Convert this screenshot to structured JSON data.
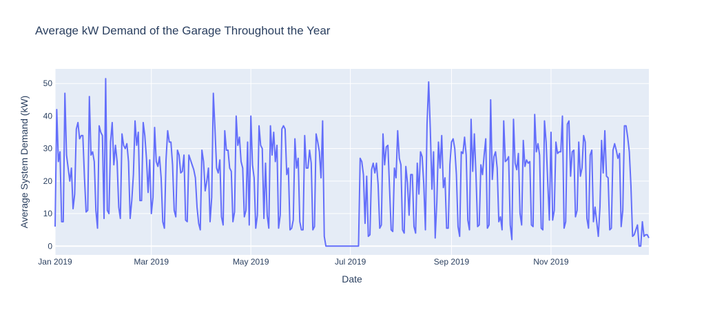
{
  "chart_data": {
    "type": "line",
    "title": "Average kW Demand of the Garage Throughout the Year",
    "xlabel": "Date",
    "ylabel": "Average System Demand (kW)",
    "x_range": [
      "2019-01-01",
      "2019-12-31"
    ],
    "ylim": [
      -2.7,
      54.5
    ],
    "x_ticks": [
      {
        "date": "2019-01-01",
        "label": "Jan 2019"
      },
      {
        "date": "2019-03-01",
        "label": "Mar 2019"
      },
      {
        "date": "2019-05-01",
        "label": "May 2019"
      },
      {
        "date": "2019-07-01",
        "label": "Jul 2019"
      },
      {
        "date": "2019-09-01",
        "label": "Sep 2019"
      },
      {
        "date": "2019-11-01",
        "label": "Nov 2019"
      }
    ],
    "y_ticks": [
      0,
      10,
      20,
      30,
      40,
      50
    ],
    "grid": true,
    "colors": {
      "line": "#636efa",
      "plot_bg": "#e5ecf6",
      "grid": "#ffffff",
      "text": "#2a3f5f"
    },
    "series": [
      {
        "x": [
          "2019-01-01",
          "2019-01-02",
          "2019-01-03",
          "2019-01-04",
          "2019-01-05",
          "2019-01-06",
          "2019-01-07",
          "2019-01-08",
          "2019-01-09",
          "2019-01-10",
          "2019-01-11",
          "2019-01-12",
          "2019-01-13",
          "2019-01-14",
          "2019-01-15",
          "2019-01-16",
          "2019-01-17",
          "2019-01-18",
          "2019-01-19",
          "2019-01-20",
          "2019-01-21",
          "2019-01-22",
          "2019-01-23",
          "2019-01-24",
          "2019-01-25",
          "2019-01-26",
          "2019-01-27",
          "2019-01-28",
          "2019-01-29",
          "2019-01-30",
          "2019-01-31",
          "2019-02-01",
          "2019-02-02",
          "2019-02-03",
          "2019-02-04",
          "2019-02-05",
          "2019-02-06",
          "2019-02-07",
          "2019-02-08",
          "2019-02-09",
          "2019-02-10",
          "2019-02-11",
          "2019-02-12",
          "2019-02-13",
          "2019-02-14",
          "2019-02-15",
          "2019-02-16",
          "2019-02-17",
          "2019-02-18",
          "2019-02-19",
          "2019-02-20",
          "2019-02-21",
          "2019-02-22",
          "2019-02-23",
          "2019-02-24",
          "2019-02-25",
          "2019-02-26",
          "2019-02-27",
          "2019-02-28",
          "2019-03-01",
          "2019-03-02",
          "2019-03-03",
          "2019-03-04",
          "2019-03-05",
          "2019-03-06",
          "2019-03-07",
          "2019-03-08",
          "2019-03-09",
          "2019-03-10",
          "2019-03-11",
          "2019-03-12",
          "2019-03-13",
          "2019-03-14",
          "2019-03-15",
          "2019-03-16",
          "2019-03-17",
          "2019-03-18",
          "2019-03-19",
          "2019-03-20",
          "2019-03-21",
          "2019-03-22",
          "2019-03-23",
          "2019-03-24",
          "2019-03-25",
          "2019-03-26",
          "2019-03-27",
          "2019-03-28",
          "2019-03-29",
          "2019-03-30",
          "2019-03-31",
          "2019-04-01",
          "2019-04-02",
          "2019-04-03",
          "2019-04-04",
          "2019-04-05",
          "2019-04-06",
          "2019-04-07",
          "2019-04-08",
          "2019-04-09",
          "2019-04-10",
          "2019-04-11",
          "2019-04-12",
          "2019-04-13",
          "2019-04-14",
          "2019-04-15",
          "2019-04-16",
          "2019-04-17",
          "2019-04-18",
          "2019-04-19",
          "2019-04-20",
          "2019-04-21",
          "2019-04-22",
          "2019-04-23",
          "2019-04-24",
          "2019-04-25",
          "2019-04-26",
          "2019-04-27",
          "2019-04-28",
          "2019-04-29",
          "2019-04-30",
          "2019-05-01",
          "2019-05-02",
          "2019-05-03",
          "2019-05-04",
          "2019-05-05",
          "2019-05-06",
          "2019-05-07",
          "2019-05-08",
          "2019-05-09",
          "2019-05-10",
          "2019-05-11",
          "2019-05-12",
          "2019-05-13",
          "2019-05-14",
          "2019-05-15",
          "2019-05-16",
          "2019-05-17",
          "2019-05-18",
          "2019-05-19",
          "2019-05-20",
          "2019-05-21",
          "2019-05-22",
          "2019-05-23",
          "2019-05-24",
          "2019-05-25",
          "2019-05-26",
          "2019-05-27",
          "2019-05-28",
          "2019-05-29",
          "2019-05-30",
          "2019-05-31",
          "2019-06-01",
          "2019-06-02",
          "2019-06-03",
          "2019-06-04",
          "2019-06-05",
          "2019-06-06",
          "2019-06-07",
          "2019-06-08",
          "2019-06-09",
          "2019-06-10",
          "2019-06-11",
          "2019-06-12",
          "2019-06-13",
          "2019-06-14",
          "2019-06-15",
          "2019-06-16",
          "2019-06-17",
          "2019-06-18",
          "2019-06-19",
          "2019-06-20",
          "2019-06-21",
          "2019-06-22",
          "2019-06-23",
          "2019-06-24",
          "2019-06-25",
          "2019-06-26",
          "2019-06-27",
          "2019-06-28",
          "2019-06-29",
          "2019-06-30",
          "2019-07-01",
          "2019-07-02",
          "2019-07-03",
          "2019-07-04",
          "2019-07-05",
          "2019-07-06",
          "2019-07-07",
          "2019-07-08",
          "2019-07-09",
          "2019-07-10",
          "2019-07-11",
          "2019-07-12",
          "2019-07-13",
          "2019-07-14",
          "2019-07-15",
          "2019-07-16",
          "2019-07-17",
          "2019-07-18",
          "2019-07-19",
          "2019-07-20",
          "2019-07-21",
          "2019-07-22",
          "2019-07-23",
          "2019-07-24",
          "2019-07-25",
          "2019-07-26",
          "2019-07-27",
          "2019-07-28",
          "2019-07-29",
          "2019-07-30",
          "2019-07-31",
          "2019-08-01",
          "2019-08-02",
          "2019-08-03",
          "2019-08-04",
          "2019-08-05",
          "2019-08-06",
          "2019-08-07",
          "2019-08-08",
          "2019-08-09",
          "2019-08-10",
          "2019-08-11",
          "2019-08-12",
          "2019-08-13",
          "2019-08-14",
          "2019-08-15",
          "2019-08-16",
          "2019-08-17",
          "2019-08-18",
          "2019-08-19",
          "2019-08-20",
          "2019-08-21",
          "2019-08-22",
          "2019-08-23",
          "2019-08-24",
          "2019-08-25",
          "2019-08-26",
          "2019-08-27",
          "2019-08-28",
          "2019-08-29",
          "2019-08-30",
          "2019-08-31",
          "2019-09-01",
          "2019-09-02",
          "2019-09-03",
          "2019-09-04",
          "2019-09-05",
          "2019-09-06",
          "2019-09-07",
          "2019-09-08",
          "2019-09-09",
          "2019-09-10",
          "2019-09-11",
          "2019-09-12",
          "2019-09-13",
          "2019-09-14",
          "2019-09-15",
          "2019-09-16",
          "2019-09-17",
          "2019-09-18",
          "2019-09-19",
          "2019-09-20",
          "2019-09-21",
          "2019-09-22",
          "2019-09-23",
          "2019-09-24",
          "2019-09-25",
          "2019-09-26",
          "2019-09-27",
          "2019-09-28",
          "2019-09-29",
          "2019-09-30",
          "2019-10-01",
          "2019-10-02",
          "2019-10-03",
          "2019-10-04",
          "2019-10-05",
          "2019-10-06",
          "2019-10-07",
          "2019-10-08",
          "2019-10-09",
          "2019-10-10",
          "2019-10-11",
          "2019-10-12",
          "2019-10-13",
          "2019-10-14",
          "2019-10-15",
          "2019-10-16",
          "2019-10-17",
          "2019-10-18",
          "2019-10-19",
          "2019-10-20",
          "2019-10-21",
          "2019-10-22",
          "2019-10-23",
          "2019-10-24",
          "2019-10-25",
          "2019-10-26",
          "2019-10-27",
          "2019-10-28",
          "2019-10-29",
          "2019-10-30",
          "2019-10-31",
          "2019-11-01",
          "2019-11-02",
          "2019-11-03",
          "2019-11-04",
          "2019-11-05",
          "2019-11-06",
          "2019-11-07",
          "2019-11-08",
          "2019-11-09",
          "2019-11-10",
          "2019-11-11",
          "2019-11-12",
          "2019-11-13",
          "2019-11-14",
          "2019-11-15",
          "2019-11-16",
          "2019-11-17",
          "2019-11-18",
          "2019-11-19",
          "2019-11-20",
          "2019-11-21",
          "2019-11-22",
          "2019-11-23",
          "2019-11-24",
          "2019-11-25",
          "2019-11-26",
          "2019-11-27",
          "2019-11-28",
          "2019-11-29",
          "2019-11-30",
          "2019-12-01",
          "2019-12-02",
          "2019-12-03",
          "2019-12-04",
          "2019-12-05",
          "2019-12-06",
          "2019-12-07",
          "2019-12-08",
          "2019-12-09",
          "2019-12-10",
          "2019-12-11",
          "2019-12-12",
          "2019-12-13",
          "2019-12-14",
          "2019-12-15",
          "2019-12-16",
          "2019-12-17",
          "2019-12-18",
          "2019-12-19",
          "2019-12-20",
          "2019-12-21",
          "2019-12-22",
          "2019-12-23",
          "2019-12-24",
          "2019-12-25",
          "2019-12-26",
          "2019-12-27",
          "2019-12-28",
          "2019-12-29",
          "2019-12-30",
          "2019-12-31"
        ],
        "values": [
          6,
          42,
          26,
          29,
          7.5,
          7.5,
          47,
          28,
          24,
          20,
          24,
          11.5,
          16,
          36,
          38,
          33,
          34,
          34,
          21,
          10.5,
          11,
          46,
          28,
          29,
          26,
          11,
          5.5,
          37,
          35,
          34,
          8.5,
          51.5,
          11,
          10,
          32,
          38,
          25,
          31,
          26,
          12,
          8.5,
          34.5,
          31,
          30,
          31.5,
          26,
          8.5,
          14,
          22,
          38.5,
          31,
          35,
          14,
          14,
          38,
          34,
          27,
          16.5,
          26.5,
          10,
          15,
          36.5,
          26,
          24.5,
          27.5,
          21,
          7.5,
          5.5,
          26.5,
          35.5,
          32,
          32,
          25,
          11,
          9,
          29.5,
          28,
          22.5,
          23,
          28,
          8,
          7.5,
          28,
          26.5,
          25,
          23.5,
          21,
          12,
          7,
          5,
          29.5,
          26,
          17,
          20,
          24,
          7.5,
          15,
          47,
          36,
          24,
          22.5,
          26.5,
          9,
          6.5,
          35.5,
          29.5,
          29.5,
          24,
          23,
          7.5,
          10.5,
          40,
          31,
          33.5,
          26,
          24,
          9,
          11,
          32,
          6.5,
          40,
          25,
          21,
          5.5,
          9.5,
          37,
          31,
          30,
          8.5,
          25.5,
          9.5,
          5.5,
          37,
          28,
          35,
          26,
          31,
          5.5,
          9.5,
          36,
          37,
          36,
          22,
          24,
          5,
          5.5,
          8,
          33,
          24,
          27,
          7.5,
          5,
          5,
          34,
          24,
          24,
          29.5,
          25.5,
          5,
          6,
          34.5,
          32,
          29,
          21,
          38.5,
          3,
          0,
          0,
          0,
          0,
          0,
          0,
          0,
          0,
          0,
          0,
          0,
          0,
          0,
          0,
          0,
          0,
          0,
          0,
          0,
          0,
          0,
          27,
          26,
          22,
          7,
          21.5,
          3,
          3.5,
          23.5,
          25.5,
          22.5,
          25.5,
          19,
          5.5,
          6.5,
          34.5,
          25,
          30.5,
          31,
          18,
          5,
          4.5,
          24,
          21,
          35.5,
          27,
          25,
          5,
          4,
          24.5,
          19.5,
          9.5,
          22,
          22,
          6,
          4,
          25.5,
          16,
          29,
          27.5,
          19,
          5,
          37.5,
          50.5,
          36,
          17.5,
          29,
          2.5,
          13.5,
          32,
          24,
          34,
          18,
          21,
          5.5,
          5.5,
          25,
          32,
          33,
          30,
          22,
          6,
          3,
          29,
          28.5,
          33.5,
          28,
          8,
          5,
          39,
          23,
          34.5,
          22,
          6,
          6.5,
          25,
          22,
          28,
          33,
          5.5,
          6.5,
          45,
          20.5,
          27.5,
          29,
          24,
          7.5,
          9,
          5,
          38.5,
          26,
          26.5,
          27.5,
          6.5,
          2,
          39,
          25.5,
          23.5,
          28.5,
          10,
          6.5,
          32.5,
          24.5,
          26.5,
          25.5,
          26,
          6.5,
          6,
          40.5,
          29,
          31.5,
          28,
          5.5,
          5,
          38.5,
          32,
          19.5,
          8,
          35,
          8,
          11,
          32,
          28.5,
          29,
          29,
          40,
          5.5,
          7.5,
          37.5,
          38.5,
          21.5,
          29,
          29.5,
          9,
          11,
          32,
          21.5,
          24,
          34,
          32,
          8.5,
          5.5,
          28,
          29.5,
          7.5,
          12,
          7.5,
          3,
          12,
          32.5,
          22.5,
          35.5,
          21.5,
          21,
          5,
          5.5,
          29.5,
          31.5,
          29.5,
          27,
          28.5,
          6,
          11,
          37,
          37,
          33.5,
          29,
          18.5,
          3,
          3.5,
          5,
          6.5,
          0,
          0,
          7.5,
          3,
          3.5,
          3.5,
          2.5
        ]
      }
    ]
  }
}
